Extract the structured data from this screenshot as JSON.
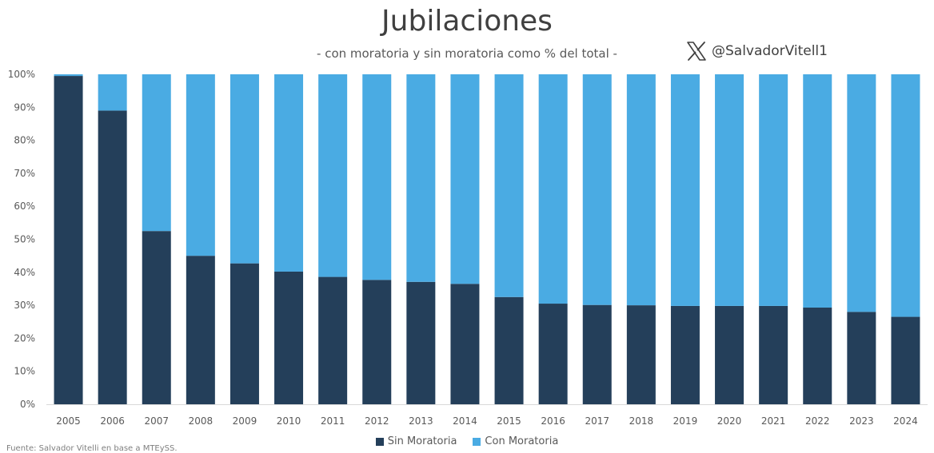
{
  "header": {
    "title": "Jubilaciones",
    "subtitle": "- con moratoria y sin moratoria como % del total -",
    "handle": "@SalvadorVitell1",
    "handle_icon": "x-logo-icon"
  },
  "footer": {
    "source": "Fuente: Salvador Vitelli en base a MTEySS."
  },
  "colors": {
    "sin": "#243f5a",
    "con": "#4aabe3",
    "axis": "#d9d9d9"
  },
  "chart_data": {
    "type": "bar",
    "stacked": true,
    "categories": [
      "2005",
      "2006",
      "2007",
      "2008",
      "2009",
      "2010",
      "2011",
      "2012",
      "2013",
      "2014",
      "2015",
      "2016",
      "2017",
      "2018",
      "2019",
      "2020",
      "2021",
      "2022",
      "2023",
      "2024"
    ],
    "series": [
      {
        "name": "Sin Moratoria",
        "values": [
          99.5,
          89,
          52.5,
          45,
          42.7,
          40.2,
          38.6,
          37.7,
          37.1,
          36.5,
          32.5,
          30.5,
          30.1,
          30.0,
          29.8,
          29.8,
          29.8,
          29.3,
          28.0,
          26.5
        ]
      },
      {
        "name": "Con Moratoria",
        "values": [
          0.5,
          11,
          47.5,
          55,
          57.3,
          59.8,
          61.4,
          62.3,
          62.9,
          63.5,
          67.5,
          69.5,
          69.9,
          70.0,
          70.2,
          70.2,
          70.2,
          70.7,
          72.0,
          73.5
        ]
      }
    ],
    "yticks": [
      "0%",
      "10%",
      "20%",
      "30%",
      "40%",
      "50%",
      "60%",
      "70%",
      "80%",
      "90%",
      "100%"
    ],
    "ylim": [
      0,
      100
    ],
    "legend_position": "bottom",
    "grid": false
  }
}
